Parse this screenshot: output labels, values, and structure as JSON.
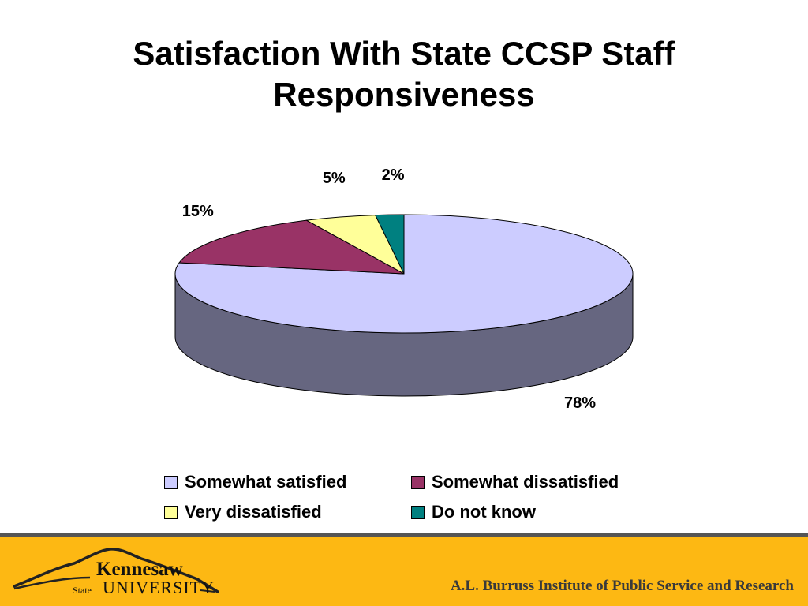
{
  "slide": {
    "title_line1": "Satisfaction With State CCSP Staff",
    "title_line2": "Responsiveness"
  },
  "chart_data": {
    "type": "pie",
    "title": "Satisfaction With State CCSP Staff Responsiveness",
    "categories": [
      "Somewhat satisfied",
      "Somewhat dissatisfied",
      "Very dissatisfied",
      "Do not know"
    ],
    "values": [
      78,
      15,
      5,
      2
    ],
    "value_labels": [
      "78%",
      "15%",
      "5%",
      "2%"
    ],
    "colors": [
      "#CCCCFF",
      "#993366",
      "#FFFF99",
      "#008080"
    ],
    "side_color": "#666680",
    "style": "3d",
    "legend_position": "bottom"
  },
  "footer": {
    "logo_text_1": "Kennesaw",
    "logo_text_2": "State",
    "logo_text_3": "UNIVERSITY",
    "institute": "A.L. Burruss Institute of Public Service and Research",
    "background_color": "#FDB813"
  }
}
